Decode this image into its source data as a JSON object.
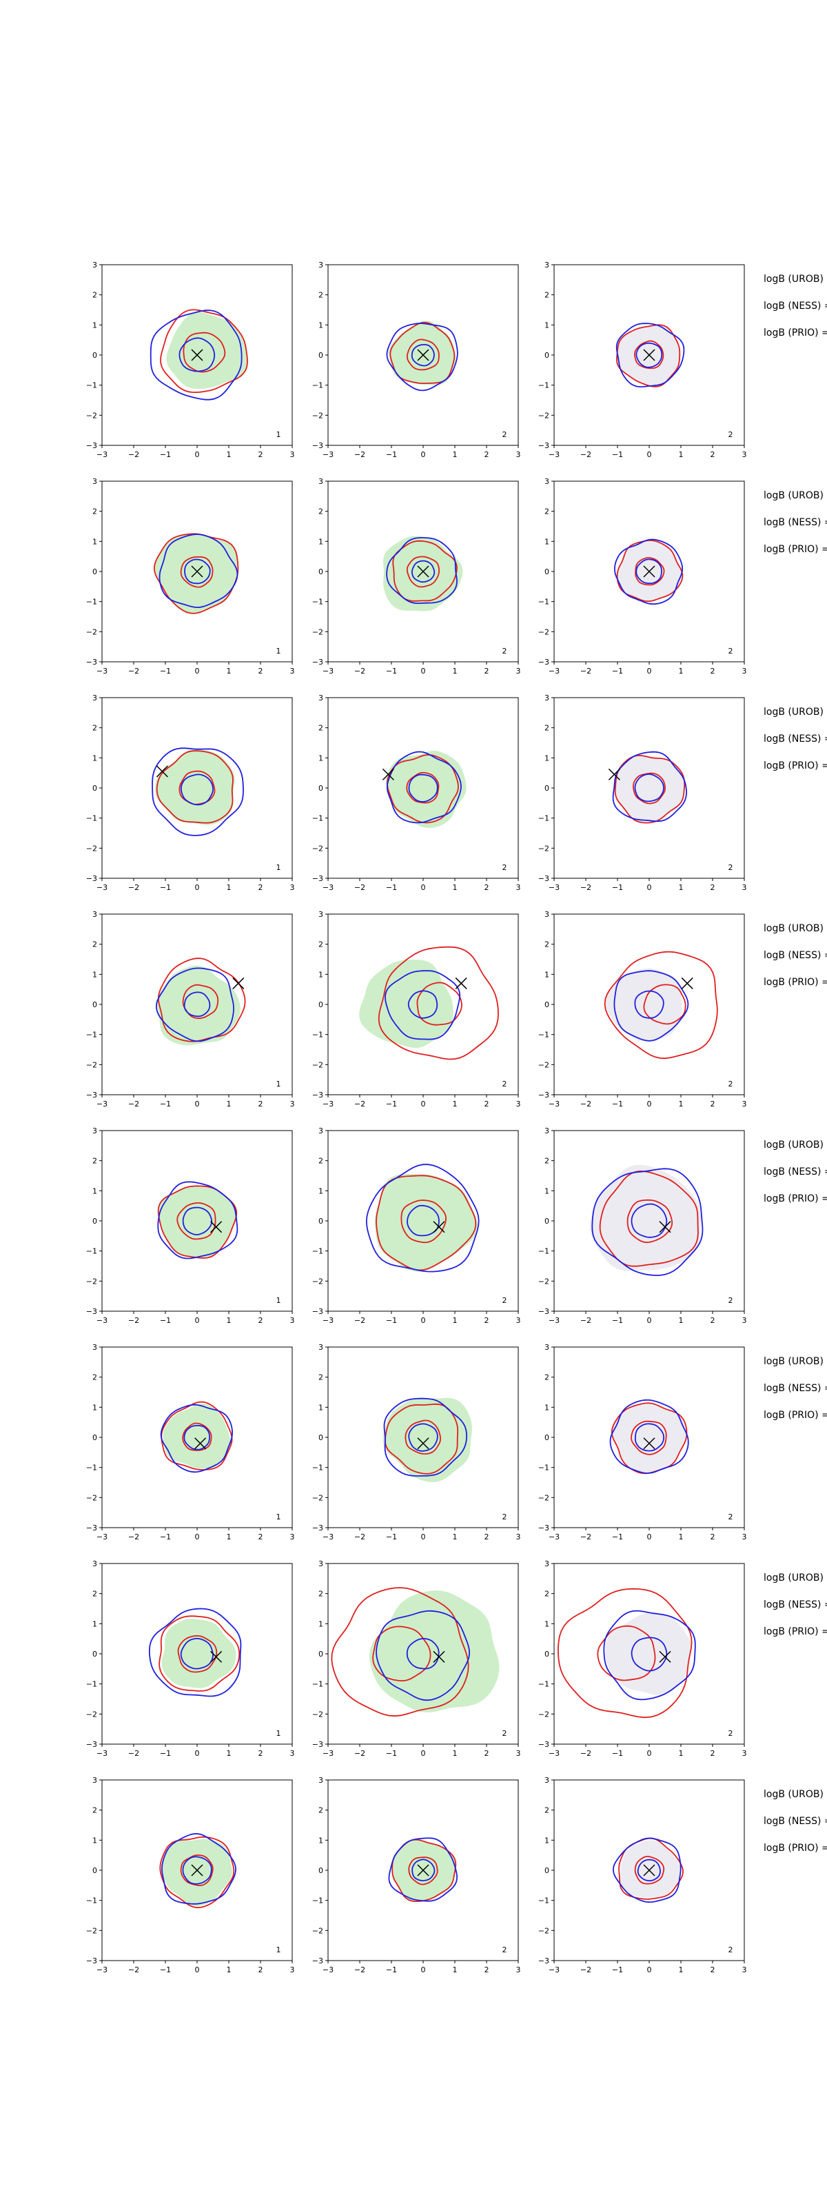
{
  "figure": {
    "rows": 8,
    "cols": 3,
    "axis_range": [
      -3,
      3
    ],
    "ticks": [
      -3,
      -2,
      -1,
      0,
      1,
      2,
      3
    ],
    "tick_labels": [
      "−3",
      "−2",
      "−1",
      "0",
      "1",
      "2",
      "3"
    ],
    "panel_labels": [
      "1",
      "2",
      "2"
    ],
    "legend_lines": [
      "logB (UROB) =",
      "logB (NESS) =",
      "logB (PRIO) ="
    ],
    "colors": {
      "green_fill": "#cdeec8",
      "grey_fill": "#ecebf1",
      "blue": "#1f1fe0",
      "red": "#e01f1f",
      "marker": "#000000"
    }
  },
  "chart_data": [
    {
      "type": "scatter",
      "row": 1,
      "col": 1,
      "marker": [
        0.0,
        0.0
      ],
      "green_fill": {
        "c": [
          0.3,
          0.1
        ],
        "r": 1.25
      },
      "blue": {
        "c": [
          0.0,
          0.0
        ],
        "rs": [
          0.55,
          1.45
        ]
      },
      "red": {
        "c": [
          0.2,
          0.1
        ],
        "rs": [
          0.65,
          1.35
        ]
      },
      "label": "1",
      "xlim": [
        -3,
        3
      ],
      "ylim": [
        -3,
        3
      ]
    },
    {
      "type": "scatter",
      "row": 1,
      "col": 2,
      "marker": [
        0.0,
        0.0
      ],
      "green_fill": {
        "c": [
          0.0,
          0.0
        ],
        "r": 1.05
      },
      "blue": {
        "c": [
          0.0,
          0.0
        ],
        "rs": [
          0.35,
          1.1
        ]
      },
      "red": {
        "c": [
          0.0,
          0.0
        ],
        "rs": [
          0.5,
          1.0
        ]
      },
      "label": "2",
      "xlim": [
        -3,
        3
      ],
      "ylim": [
        -3,
        3
      ]
    },
    {
      "type": "scatter",
      "row": 1,
      "col": 3,
      "marker": [
        0.0,
        0.0
      ],
      "grey_fill": {
        "c": [
          0.0,
          0.0
        ],
        "r": 1.0
      },
      "blue": {
        "c": [
          0.0,
          0.0
        ],
        "rs": [
          0.4,
          1.05
        ]
      },
      "red": {
        "c": [
          0.0,
          0.0
        ],
        "rs": [
          0.45,
          1.0
        ]
      },
      "label": "2",
      "xlim": [
        -3,
        3
      ],
      "ylim": [
        -3,
        3
      ]
    },
    {
      "type": "scatter",
      "row": 2,
      "col": 1,
      "marker": [
        0.0,
        0.0
      ],
      "green_fill": {
        "c": [
          0.0,
          0.0
        ],
        "r": 1.3
      },
      "blue": {
        "c": [
          0.0,
          0.0
        ],
        "rs": [
          0.4,
          1.2
        ]
      },
      "red": {
        "c": [
          0.0,
          0.0
        ],
        "rs": [
          0.5,
          1.3
        ]
      },
      "label": "1",
      "xlim": [
        -3,
        3
      ],
      "ylim": [
        -3,
        3
      ]
    },
    {
      "type": "scatter",
      "row": 2,
      "col": 2,
      "marker": [
        0.0,
        0.0
      ],
      "green_fill": {
        "c": [
          -0.1,
          -0.1
        ],
        "r": 1.25
      },
      "blue": {
        "c": [
          0.0,
          0.0
        ],
        "rs": [
          0.35,
          1.1
        ]
      },
      "red": {
        "c": [
          0.0,
          0.0
        ],
        "rs": [
          0.5,
          1.0
        ]
      },
      "label": "2",
      "xlim": [
        -3,
        3
      ],
      "ylim": [
        -3,
        3
      ]
    },
    {
      "type": "scatter",
      "row": 2,
      "col": 3,
      "marker": [
        0.0,
        0.0
      ],
      "grey_fill": {
        "c": [
          0.0,
          0.0
        ],
        "r": 1.0
      },
      "blue": {
        "c": [
          0.0,
          0.0
        ],
        "rs": [
          0.4,
          1.05
        ]
      },
      "red": {
        "c": [
          0.0,
          0.0
        ],
        "rs": [
          0.45,
          1.0
        ]
      },
      "label": "2",
      "xlim": [
        -3,
        3
      ],
      "ylim": [
        -3,
        3
      ]
    },
    {
      "type": "scatter",
      "row": 3,
      "col": 1,
      "marker": [
        -1.1,
        0.55
      ],
      "green_fill": {
        "c": [
          0.0,
          0.0
        ],
        "r": 1.25
      },
      "blue": {
        "c": [
          0.0,
          -0.05
        ],
        "rs": [
          0.5,
          1.45
        ]
      },
      "red": {
        "c": [
          0.0,
          0.0
        ],
        "rs": [
          0.55,
          1.2
        ]
      },
      "label": "1",
      "xlim": [
        -3,
        3
      ],
      "ylim": [
        -3,
        3
      ]
    },
    {
      "type": "scatter",
      "row": 3,
      "col": 2,
      "marker": [
        -1.1,
        0.45
      ],
      "green_fill": {
        "c": [
          0.1,
          0.0
        ],
        "r": 1.25
      },
      "blue": {
        "c": [
          0.0,
          0.0
        ],
        "rs": [
          0.45,
          1.15
        ]
      },
      "red": {
        "c": [
          0.0,
          0.0
        ],
        "rs": [
          0.5,
          1.1
        ]
      },
      "label": "2",
      "xlim": [
        -3,
        3
      ],
      "ylim": [
        -3,
        3
      ]
    },
    {
      "type": "scatter",
      "row": 3,
      "col": 3,
      "marker": [
        -1.1,
        0.45
      ],
      "grey_fill": {
        "c": [
          0.0,
          0.0
        ],
        "r": 1.1
      },
      "blue": {
        "c": [
          0.0,
          0.0
        ],
        "rs": [
          0.45,
          1.15
        ]
      },
      "red": {
        "c": [
          0.0,
          0.0
        ],
        "rs": [
          0.5,
          1.1
        ]
      },
      "label": "2",
      "xlim": [
        -3,
        3
      ],
      "ylim": [
        -3,
        3
      ]
    },
    {
      "type": "scatter",
      "row": 4,
      "col": 1,
      "marker": [
        1.3,
        0.7
      ],
      "green_fill": {
        "c": [
          0.0,
          -0.1
        ],
        "r": 1.3
      },
      "blue": {
        "c": [
          0.0,
          0.0
        ],
        "rs": [
          0.4,
          1.2
        ]
      },
      "red": {
        "c": [
          0.1,
          0.1
        ],
        "rs": [
          0.55,
          1.35
        ]
      },
      "label": "1",
      "xlim": [
        -3,
        3
      ],
      "ylim": [
        -3,
        3
      ]
    },
    {
      "type": "scatter",
      "row": 4,
      "col": 2,
      "marker": [
        1.2,
        0.7
      ],
      "green_fill": {
        "c": [
          -0.5,
          0.0
        ],
        "r": 1.45
      },
      "blue": {
        "c": [
          0.0,
          0.0
        ],
        "rs": [
          0.45,
          1.15
        ]
      },
      "red": {
        "c": [
          0.5,
          0.0
        ],
        "rs": [
          0.7,
          1.85
        ]
      },
      "label": "2",
      "xlim": [
        -3,
        3
      ],
      "ylim": [
        -3,
        3
      ]
    },
    {
      "type": "scatter",
      "row": 4,
      "col": 3,
      "marker": [
        1.2,
        0.7
      ],
      "grey_fill": {
        "c": [
          -0.1,
          0.0
        ],
        "r": 1.2
      },
      "blue": {
        "c": [
          0.0,
          0.0
        ],
        "rs": [
          0.45,
          1.15
        ]
      },
      "red": {
        "c": [
          0.5,
          0.0
        ],
        "rs": [
          0.65,
          1.75
        ]
      },
      "label": "2",
      "xlim": [
        -3,
        3
      ],
      "ylim": [
        -3,
        3
      ]
    },
    {
      "type": "scatter",
      "row": 5,
      "col": 1,
      "marker": [
        0.6,
        -0.2
      ],
      "green_fill": {
        "c": [
          0.0,
          0.0
        ],
        "r": 1.2
      },
      "blue": {
        "c": [
          0.0,
          0.0
        ],
        "rs": [
          0.45,
          1.25
        ]
      },
      "red": {
        "c": [
          0.0,
          0.0
        ],
        "rs": [
          0.6,
          1.2
        ]
      },
      "label": "1",
      "xlim": [
        -3,
        3
      ],
      "ylim": [
        -3,
        3
      ]
    },
    {
      "type": "scatter",
      "row": 5,
      "col": 2,
      "marker": [
        0.5,
        -0.2
      ],
      "green_fill": {
        "c": [
          0.0,
          0.0
        ],
        "r": 1.6
      },
      "blue": {
        "c": [
          0.0,
          0.0
        ],
        "rs": [
          0.5,
          1.75
        ]
      },
      "red": {
        "c": [
          0.0,
          0.0
        ],
        "rs": [
          0.7,
          1.55
        ]
      },
      "label": "2",
      "xlim": [
        -3,
        3
      ],
      "ylim": [
        -3,
        3
      ]
    },
    {
      "type": "scatter",
      "row": 5,
      "col": 3,
      "marker": [
        0.5,
        -0.2
      ],
      "grey_fill": {
        "c": [
          -0.1,
          0.0
        ],
        "r": 1.75
      },
      "blue": {
        "c": [
          0.0,
          0.0
        ],
        "rs": [
          0.55,
          1.75
        ]
      },
      "red": {
        "c": [
          0.0,
          0.0
        ],
        "rs": [
          0.7,
          1.55
        ]
      },
      "label": "2",
      "xlim": [
        -3,
        3
      ],
      "ylim": [
        -3,
        3
      ]
    },
    {
      "type": "scatter",
      "row": 6,
      "col": 1,
      "marker": [
        0.1,
        -0.2
      ],
      "green_fill": {
        "c": [
          0.0,
          0.0
        ],
        "r": 1.05
      },
      "blue": {
        "c": [
          0.0,
          0.0
        ],
        "rs": [
          0.4,
          1.1
        ]
      },
      "red": {
        "c": [
          0.0,
          0.0
        ],
        "rs": [
          0.45,
          1.1
        ]
      },
      "label": "1",
      "xlim": [
        -3,
        3
      ],
      "ylim": [
        -3,
        3
      ]
    },
    {
      "type": "scatter",
      "row": 6,
      "col": 2,
      "marker": [
        0.0,
        -0.2
      ],
      "green_fill": {
        "c": [
          0.2,
          0.0
        ],
        "r": 1.4
      },
      "blue": {
        "c": [
          0.0,
          0.0
        ],
        "rs": [
          0.45,
          1.3
        ]
      },
      "red": {
        "c": [
          0.0,
          0.0
        ],
        "rs": [
          0.55,
          1.15
        ]
      },
      "label": "2",
      "xlim": [
        -3,
        3
      ],
      "ylim": [
        -3,
        3
      ]
    },
    {
      "type": "scatter",
      "row": 6,
      "col": 3,
      "marker": [
        0.0,
        -0.2
      ],
      "grey_fill": {
        "c": [
          0.0,
          0.0
        ],
        "r": 1.15
      },
      "blue": {
        "c": [
          0.0,
          0.0
        ],
        "rs": [
          0.45,
          1.2
        ]
      },
      "red": {
        "c": [
          0.0,
          0.0
        ],
        "rs": [
          0.55,
          1.15
        ]
      },
      "label": "2",
      "xlim": [
        -3,
        3
      ],
      "ylim": [
        -3,
        3
      ]
    },
    {
      "type": "scatter",
      "row": 7,
      "col": 1,
      "marker": [
        0.6,
        -0.1
      ],
      "green_fill": {
        "c": [
          0.0,
          0.0
        ],
        "r": 1.15
      },
      "blue": {
        "c": [
          0.0,
          0.0
        ],
        "rs": [
          0.5,
          1.45
        ]
      },
      "red": {
        "c": [
          0.0,
          0.0
        ],
        "rs": [
          0.6,
          1.25
        ]
      },
      "label": "1",
      "xlim": [
        -3,
        3
      ],
      "ylim": [
        -3,
        3
      ]
    },
    {
      "type": "scatter",
      "row": 7,
      "col": 2,
      "marker": [
        0.5,
        -0.1
      ],
      "green_fill": {
        "c": [
          0.4,
          0.0
        ],
        "r": 2.0
      },
      "blue": {
        "c": [
          0.0,
          0.0
        ],
        "rs": [
          0.5,
          1.45
        ]
      },
      "red": {
        "c": [
          -0.7,
          0.0
        ],
        "rs": [
          0.9,
          2.1
        ]
      },
      "label": "2",
      "xlim": [
        -3,
        3
      ],
      "ylim": [
        -3,
        3
      ]
    },
    {
      "type": "scatter",
      "row": 7,
      "col": 3,
      "marker": [
        0.5,
        -0.1
      ],
      "grey_fill": {
        "c": [
          0.0,
          0.0
        ],
        "r": 1.35
      },
      "blue": {
        "c": [
          0.0,
          0.0
        ],
        "rs": [
          0.55,
          1.45
        ]
      },
      "red": {
        "c": [
          -0.7,
          0.0
        ],
        "rs": [
          0.9,
          2.1
        ]
      },
      "label": "2",
      "xlim": [
        -3,
        3
      ],
      "ylim": [
        -3,
        3
      ]
    },
    {
      "type": "scatter",
      "row": 8,
      "col": 1,
      "marker": [
        0.0,
        0.0
      ],
      "green_fill": {
        "c": [
          0.0,
          0.0
        ],
        "r": 1.1
      },
      "blue": {
        "c": [
          0.0,
          0.0
        ],
        "rs": [
          0.45,
          1.15
        ]
      },
      "red": {
        "c": [
          0.0,
          0.0
        ],
        "rs": [
          0.5,
          1.15
        ]
      },
      "label": "1",
      "xlim": [
        -3,
        3
      ],
      "ylim": [
        -3,
        3
      ]
    },
    {
      "type": "scatter",
      "row": 8,
      "col": 2,
      "marker": [
        0.0,
        0.0
      ],
      "green_fill": {
        "c": [
          0.0,
          0.0
        ],
        "r": 1.0
      },
      "blue": {
        "c": [
          0.0,
          0.0
        ],
        "rs": [
          0.35,
          1.05
        ]
      },
      "red": {
        "c": [
          0.0,
          0.0
        ],
        "rs": [
          0.45,
          1.0
        ]
      },
      "label": "2",
      "xlim": [
        -3,
        3
      ],
      "ylim": [
        -3,
        3
      ]
    },
    {
      "type": "scatter",
      "row": 8,
      "col": 3,
      "marker": [
        0.0,
        0.0
      ],
      "grey_fill": {
        "c": [
          0.0,
          0.0
        ],
        "r": 0.95
      },
      "blue": {
        "c": [
          0.0,
          0.0
        ],
        "rs": [
          0.35,
          1.05
        ]
      },
      "red": {
        "c": [
          0.0,
          0.0
        ],
        "rs": [
          0.45,
          1.0
        ]
      },
      "label": "2",
      "xlim": [
        -3,
        3
      ],
      "ylim": [
        -3,
        3
      ]
    }
  ]
}
